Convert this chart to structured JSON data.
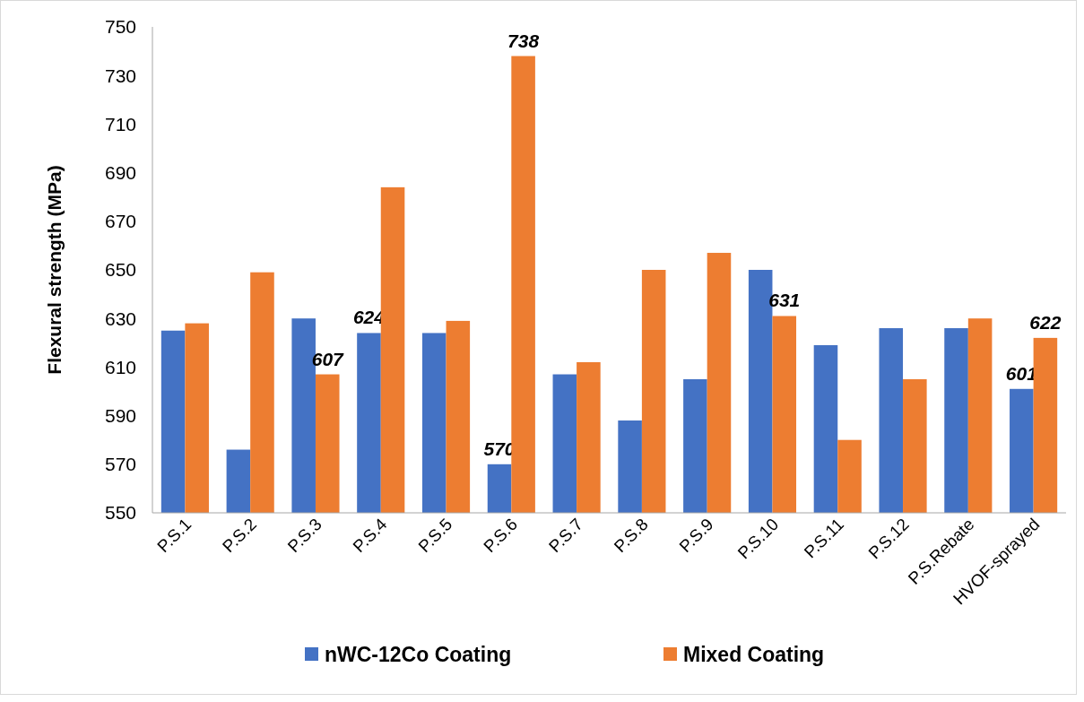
{
  "chart_data": {
    "type": "bar",
    "ylabel": "Flexural strength (MPa)",
    "categories": [
      "P.S.1",
      "P.S.2",
      "P.S.3",
      "P.S.4",
      "P.S.5",
      "P.S.6",
      "P.S.7",
      "P.S.8",
      "P.S.9",
      "P.S.10",
      "P.S.11",
      "P.S.12",
      "P.S.Rebate",
      "HVOF-sprayed"
    ],
    "series": [
      {
        "name": "nWC-12Co Coating",
        "color": "#4472c4",
        "values": [
          625,
          576,
          630,
          624,
          624,
          570,
          607,
          588,
          605,
          650,
          619,
          626,
          626,
          601
        ],
        "value_labels": [
          null,
          null,
          null,
          "624",
          null,
          "570",
          null,
          null,
          null,
          null,
          null,
          null,
          null,
          "601"
        ]
      },
      {
        "name": "Mixed Coating",
        "color": "#ed7d31",
        "values": [
          628,
          649,
          607,
          684,
          629,
          738,
          612,
          650,
          657,
          631,
          580,
          605,
          630,
          622
        ],
        "value_labels": [
          null,
          null,
          "607",
          null,
          null,
          "738",
          null,
          null,
          null,
          "631",
          null,
          null,
          null,
          "622"
        ]
      }
    ],
    "ylim": [
      550,
      750
    ],
    "yticks": [
      550,
      570,
      590,
      610,
      630,
      650,
      670,
      690,
      710,
      730,
      750
    ],
    "legend": "bottom"
  }
}
